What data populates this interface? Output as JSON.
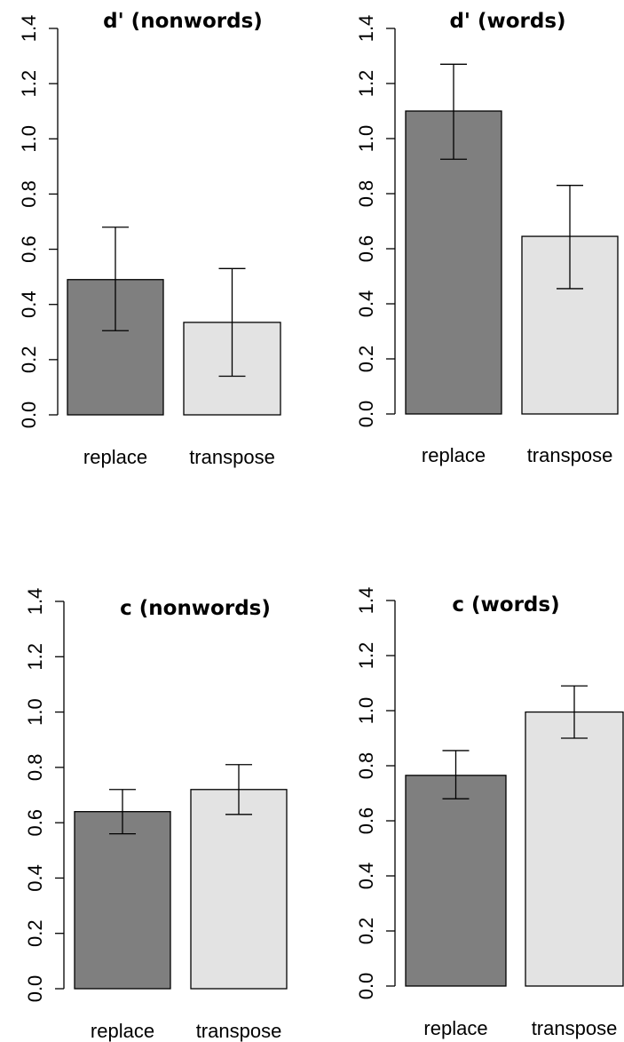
{
  "chart_data": [
    {
      "type": "bar",
      "title": "d' (nonwords)",
      "categories": [
        "replace",
        "transpose"
      ],
      "values": [
        0.49,
        0.335
      ],
      "error_low": [
        0.305,
        0.14
      ],
      "error_high": [
        0.68,
        0.53
      ],
      "colors": [
        "#7f7f7f",
        "#e3e3e3"
      ],
      "ylim": [
        0,
        1.4
      ],
      "yticks": [
        "0.0",
        "0.2",
        "0.4",
        "0.6",
        "0.8",
        "1.0",
        "1.2",
        "1.4"
      ],
      "grid": false,
      "legend": "none"
    },
    {
      "type": "bar",
      "title": "d' (words)",
      "categories": [
        "replace",
        "transpose"
      ],
      "values": [
        1.1,
        0.645
      ],
      "error_low": [
        0.925,
        0.455
      ],
      "error_high": [
        1.27,
        0.83
      ],
      "colors": [
        "#7f7f7f",
        "#e3e3e3"
      ],
      "ylim": [
        0,
        1.4
      ],
      "yticks": [
        "0.0",
        "0.2",
        "0.4",
        "0.6",
        "0.8",
        "1.0",
        "1.2",
        "1.4"
      ],
      "grid": false,
      "legend": "none"
    },
    {
      "type": "bar",
      "title": "c (nonwords)",
      "categories": [
        "replace",
        "transpose"
      ],
      "values": [
        0.64,
        0.72
      ],
      "error_low": [
        0.56,
        0.63
      ],
      "error_high": [
        0.72,
        0.81
      ],
      "colors": [
        "#7f7f7f",
        "#e3e3e3"
      ],
      "ylim": [
        0,
        1.4
      ],
      "yticks": [
        "0.0",
        "0.2",
        "0.4",
        "0.6",
        "0.8",
        "1.0",
        "1.2",
        "1.4"
      ],
      "grid": false,
      "legend": "none"
    },
    {
      "type": "bar",
      "title": "c (words)",
      "categories": [
        "replace",
        "transpose"
      ],
      "values": [
        0.765,
        0.995
      ],
      "error_low": [
        0.68,
        0.9
      ],
      "error_high": [
        0.855,
        1.09
      ],
      "colors": [
        "#7f7f7f",
        "#e3e3e3"
      ],
      "ylim": [
        0,
        1.4
      ],
      "yticks": [
        "0.0",
        "0.2",
        "0.4",
        "0.6",
        "0.8",
        "1.0",
        "1.2",
        "1.4"
      ],
      "grid": false,
      "legend": "none"
    }
  ]
}
